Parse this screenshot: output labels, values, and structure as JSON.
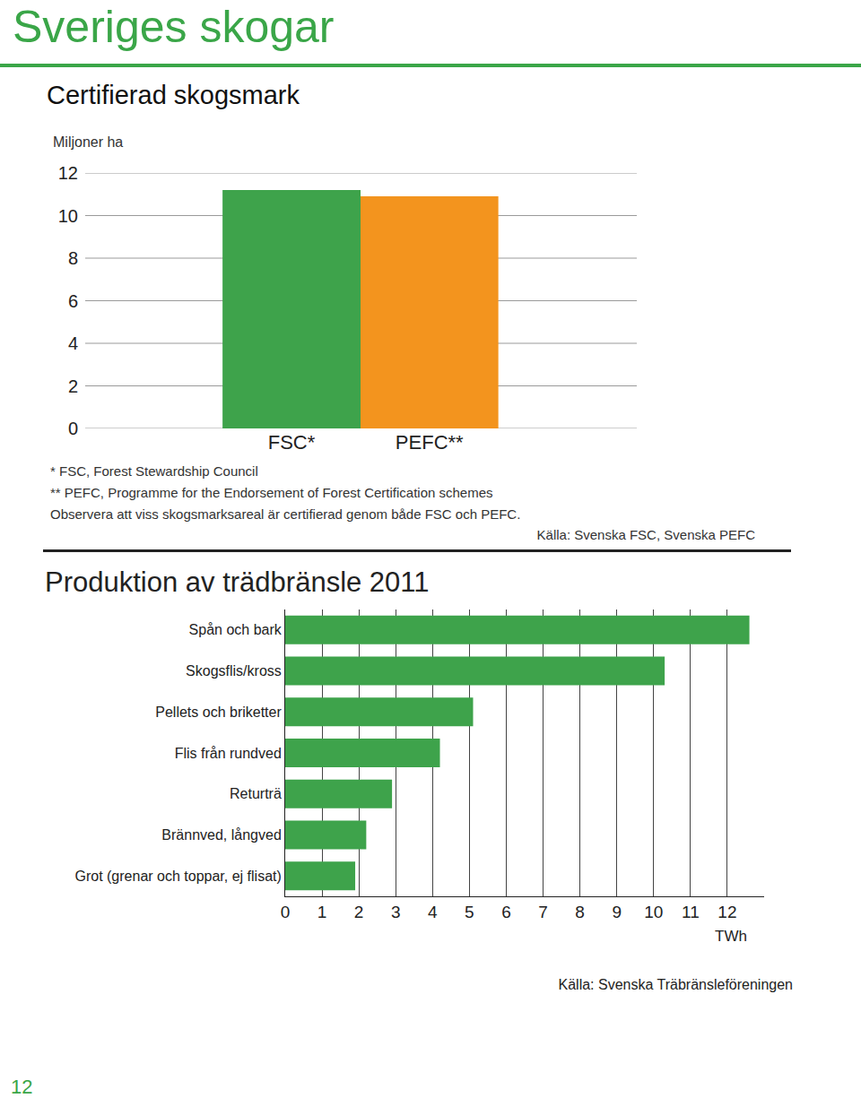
{
  "header": "Sveriges skogar",
  "page_number": 12,
  "chart_data": [
    {
      "type": "bar",
      "title": "Certifierad skogsmark",
      "y_label": "Miljoner ha",
      "categories": [
        "FSC*",
        "PEFC**"
      ],
      "values": [
        11.2,
        10.9
      ],
      "colors": [
        "#3ea34b",
        "#f3941e"
      ],
      "ylim": [
        0,
        12
      ],
      "yticks": [
        0,
        2,
        4,
        6,
        8,
        10,
        12
      ],
      "grid": true,
      "notes": [
        "* FSC, Forest Stewardship Council",
        "** PEFC, Programme for the Endorsement of Forest Certification schemes",
        "Observera att viss skogsmarksareal är certifierad genom både FSC och PEFC."
      ],
      "source": "Källa: Svenska FSC, Svenska PEFC"
    },
    {
      "type": "bar",
      "orientation": "horizontal",
      "title": "Produktion av trädbränsle 2011",
      "x_label": "TWh",
      "categories": [
        "Spån och bark",
        "Skogsflis/kross",
        "Pellets och briketter",
        "Flis från rundved",
        "Returträ",
        "Brännved, långved",
        "Grot (grenar och toppar, ej flisat)"
      ],
      "values": [
        12.6,
        10.3,
        5.1,
        4.2,
        2.9,
        2.2,
        1.9
      ],
      "color": "#3ea34b",
      "xlim": [
        0,
        13
      ],
      "xticks": [
        0,
        1,
        2,
        3,
        4,
        5,
        6,
        7,
        8,
        9,
        10,
        11,
        12
      ],
      "grid": true,
      "source": "Källa: Svenska Träbränsleföreningen"
    }
  ]
}
